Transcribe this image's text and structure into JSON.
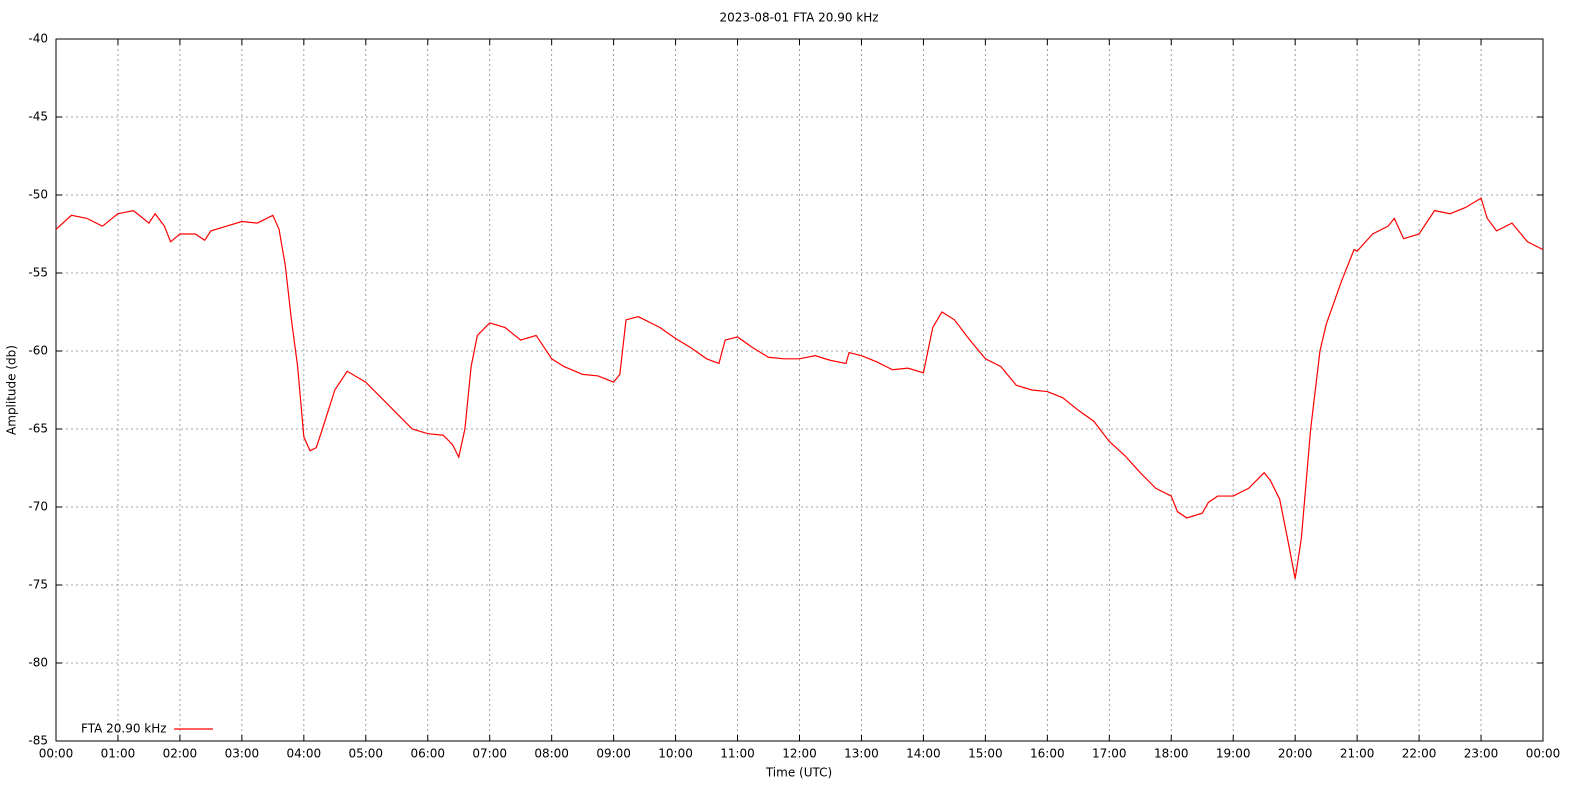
{
  "chart_data": {
    "type": "line",
    "title": "2023-08-01 FTA 20.90 kHz",
    "xlabel": "Time (UTC)",
    "ylabel": "Amplitude (db)",
    "xlim": [
      0,
      24
    ],
    "ylim": [
      -85,
      -40
    ],
    "xticks": [
      {
        "value": 0,
        "label": "00:00"
      },
      {
        "value": 1,
        "label": "01:00"
      },
      {
        "value": 2,
        "label": "02:00"
      },
      {
        "value": 3,
        "label": "03:00"
      },
      {
        "value": 4,
        "label": "04:00"
      },
      {
        "value": 5,
        "label": "05:00"
      },
      {
        "value": 6,
        "label": "06:00"
      },
      {
        "value": 7,
        "label": "07:00"
      },
      {
        "value": 8,
        "label": "08:00"
      },
      {
        "value": 9,
        "label": "09:00"
      },
      {
        "value": 10,
        "label": "10:00"
      },
      {
        "value": 11,
        "label": "11:00"
      },
      {
        "value": 12,
        "label": "12:00"
      },
      {
        "value": 13,
        "label": "13:00"
      },
      {
        "value": 14,
        "label": "14:00"
      },
      {
        "value": 15,
        "label": "15:00"
      },
      {
        "value": 16,
        "label": "16:00"
      },
      {
        "value": 17,
        "label": "17:00"
      },
      {
        "value": 18,
        "label": "18:00"
      },
      {
        "value": 19,
        "label": "19:00"
      },
      {
        "value": 20,
        "label": "20:00"
      },
      {
        "value": 21,
        "label": "21:00"
      },
      {
        "value": 22,
        "label": "22:00"
      },
      {
        "value": 23,
        "label": "23:00"
      },
      {
        "value": 24,
        "label": "00:00"
      }
    ],
    "yticks": [
      -85,
      -80,
      -75,
      -70,
      -65,
      -60,
      -55,
      -50,
      -45,
      -40
    ],
    "grid": true,
    "legend": "bottom-left",
    "x": [
      0,
      0.25,
      0.5,
      0.75,
      1,
      1.25,
      1.5,
      1.6,
      1.75,
      1.85,
      2,
      2.25,
      2.4,
      2.5,
      2.75,
      3,
      3.25,
      3.5,
      3.6,
      3.7,
      3.8,
      3.9,
      4,
      4.1,
      4.2,
      4.3,
      4.5,
      4.7,
      5,
      5.25,
      5.5,
      5.75,
      6,
      6.25,
      6.4,
      6.5,
      6.6,
      6.7,
      6.8,
      7,
      7.25,
      7.5,
      7.75,
      8,
      8.2,
      8.5,
      8.75,
      9,
      9.1,
      9.2,
      9.4,
      9.75,
      10,
      10.25,
      10.5,
      10.7,
      10.8,
      11,
      11.25,
      11.5,
      11.75,
      12,
      12.25,
      12.5,
      12.75,
      12.8,
      13,
      13.25,
      13.5,
      13.75,
      14,
      14.15,
      14.3,
      14.5,
      14.75,
      15,
      15.25,
      15.5,
      15.75,
      16,
      16.25,
      16.5,
      16.75,
      17,
      17.25,
      17.5,
      17.75,
      18,
      18.1,
      18.25,
      18.5,
      18.6,
      18.75,
      19,
      19.25,
      19.5,
      19.6,
      19.75,
      19.9,
      20,
      20.1,
      20.25,
      20.4,
      20.5,
      20.75,
      20.95,
      21,
      21.25,
      21.5,
      21.6,
      21.75,
      22,
      22.25,
      22.5,
      22.75,
      23,
      23.1,
      23.25,
      23.5,
      23.75,
      24
    ],
    "series": [
      {
        "name": "FTA 20.90 kHz",
        "color": "#ff0000",
        "values": [
          -52.2,
          -51.3,
          -51.5,
          -52.0,
          -51.2,
          -51.0,
          -51.8,
          -51.2,
          -52.0,
          -53.0,
          -52.5,
          -52.5,
          -52.9,
          -52.3,
          -52.0,
          -51.7,
          -51.8,
          -51.3,
          -52.2,
          -54.5,
          -58,
          -61,
          -65.5,
          -66.4,
          -66.2,
          -65,
          -62.5,
          -61.3,
          -62,
          -63,
          -64,
          -65,
          -65.3,
          -65.4,
          -66,
          -66.8,
          -65,
          -61,
          -59,
          -58.2,
          -58.5,
          -59.3,
          -59.0,
          -60.5,
          -61,
          -61.5,
          -61.6,
          -62,
          -61.5,
          -58,
          -57.8,
          -58.5,
          -59.2,
          -59.8,
          -60.5,
          -60.8,
          -59.3,
          -59.1,
          -59.8,
          -60.4,
          -60.5,
          -60.5,
          -60.3,
          -60.6,
          -60.8,
          -60.1,
          -60.3,
          -60.7,
          -61.2,
          -61.1,
          -61.4,
          -58.5,
          -57.5,
          -58,
          -59.3,
          -60.5,
          -61,
          -62.2,
          -62.5,
          -62.6,
          -63,
          -63.8,
          -64.5,
          -65.8,
          -66.7,
          -67.8,
          -68.8,
          -69.3,
          -70.3,
          -70.7,
          -70.4,
          -69.7,
          -69.3,
          -69.3,
          -68.8,
          -67.8,
          -68.3,
          -69.5,
          -72.5,
          -74.6,
          -72,
          -65,
          -60,
          -58.3,
          -55.5,
          -53.5,
          -53.6,
          -52.5,
          -52.0,
          -51.5,
          -52.8,
          -52.5,
          -51.0,
          -51.2,
          -50.8,
          -50.2,
          -51.5,
          -52.3,
          -51.8,
          -53.0,
          -53.5
        ]
      }
    ]
  }
}
